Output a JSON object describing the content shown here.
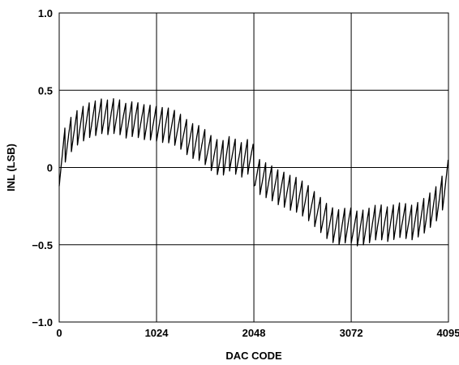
{
  "chart_data": {
    "type": "line",
    "title": "",
    "xlabel": "DAC CODE",
    "ylabel": "INL (LSB)",
    "xlim": [
      0,
      4095
    ],
    "ylim": [
      -1.0,
      1.0
    ],
    "grid": true,
    "x_ticks": [
      {
        "value": 0,
        "label": "0"
      },
      {
        "value": 1024,
        "label": "1024"
      },
      {
        "value": 2048,
        "label": "2048"
      },
      {
        "value": 3072,
        "label": "3072"
      },
      {
        "value": 4095,
        "label": "4095"
      }
    ],
    "y_ticks": [
      {
        "value": 1.0,
        "label": "1.0"
      },
      {
        "value": 0.5,
        "label": "0.5"
      },
      {
        "value": 0,
        "label": "0"
      },
      {
        "value": -0.5,
        "label": "−0.5"
      },
      {
        "value": -1.0,
        "label": "−1.0"
      }
    ],
    "series": [
      {
        "color": "#000000",
        "x": [
          0,
          60,
          100,
          150,
          200,
          250,
          300,
          350,
          400,
          450,
          500,
          550,
          600,
          650,
          700,
          750,
          800,
          850,
          900,
          950,
          1000,
          1050,
          1100,
          1150,
          1200,
          1250,
          1300,
          1350,
          1400,
          1450,
          1500,
          1550,
          1600,
          1650,
          1700,
          1750,
          1800,
          1850,
          1900,
          1950,
          2000,
          2040,
          2048,
          2060,
          2100,
          2150,
          2200,
          2250,
          2300,
          2350,
          2400,
          2450,
          2500,
          2550,
          2600,
          2650,
          2700,
          2750,
          2800,
          2850,
          2900,
          2950,
          3000,
          3050,
          3100,
          3150,
          3200,
          3250,
          3300,
          3350,
          3400,
          3450,
          3500,
          3550,
          3600,
          3650,
          3700,
          3750,
          3800,
          3850,
          3900,
          3950,
          4000,
          4050,
          4095
        ],
        "y": [
          0.0,
          0.15,
          0.2,
          0.24,
          0.27,
          0.29,
          0.31,
          0.32,
          0.33,
          0.34,
          0.33,
          0.34,
          0.34,
          0.33,
          0.31,
          0.32,
          0.32,
          0.31,
          0.3,
          0.3,
          0.29,
          0.29,
          0.28,
          0.28,
          0.27,
          0.25,
          0.23,
          0.2,
          0.18,
          0.17,
          0.16,
          0.13,
          0.1,
          0.08,
          0.06,
          0.08,
          0.1,
          0.08,
          0.05,
          0.07,
          0.08,
          0.06,
          0.0,
          -0.04,
          -0.05,
          -0.07,
          -0.08,
          -0.1,
          -0.12,
          -0.13,
          -0.15,
          -0.16,
          -0.17,
          -0.19,
          -0.21,
          -0.24,
          -0.27,
          -0.3,
          -0.33,
          -0.36,
          -0.37,
          -0.38,
          -0.37,
          -0.36,
          -0.38,
          -0.39,
          -0.38,
          -0.37,
          -0.36,
          -0.34,
          -0.35,
          -0.36,
          -0.35,
          -0.34,
          -0.33,
          -0.34,
          -0.35,
          -0.34,
          -0.32,
          -0.3,
          -0.27,
          -0.24,
          -0.2,
          -0.13,
          -0.05
        ]
      }
    ]
  }
}
